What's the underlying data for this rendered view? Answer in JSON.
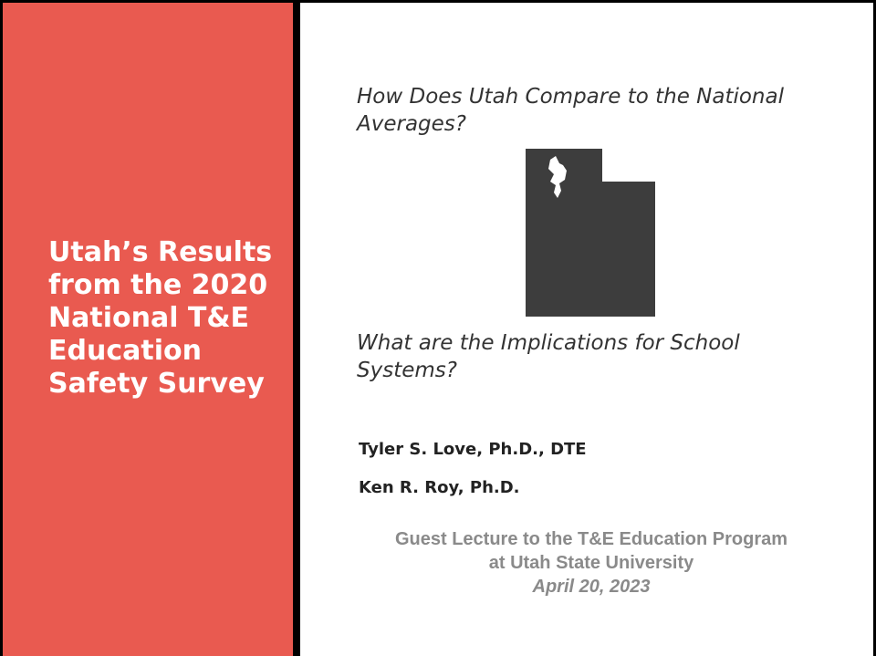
{
  "sidebar": {
    "title": "Utah’s Results from the 2020 National T&E Education Safety Survey"
  },
  "content": {
    "question_1": "How Does Utah Compare to the National Averages?",
    "question_2": "What are the Implications for School Systems?",
    "authors": [
      "Tyler S. Love, Ph.D., DTE",
      "Ken R. Roy, Ph.D."
    ],
    "lecture": {
      "line_1": "Guest Lecture to the T&E Education Program",
      "line_2": "at Utah State University",
      "date": "April 20, 2023"
    }
  }
}
